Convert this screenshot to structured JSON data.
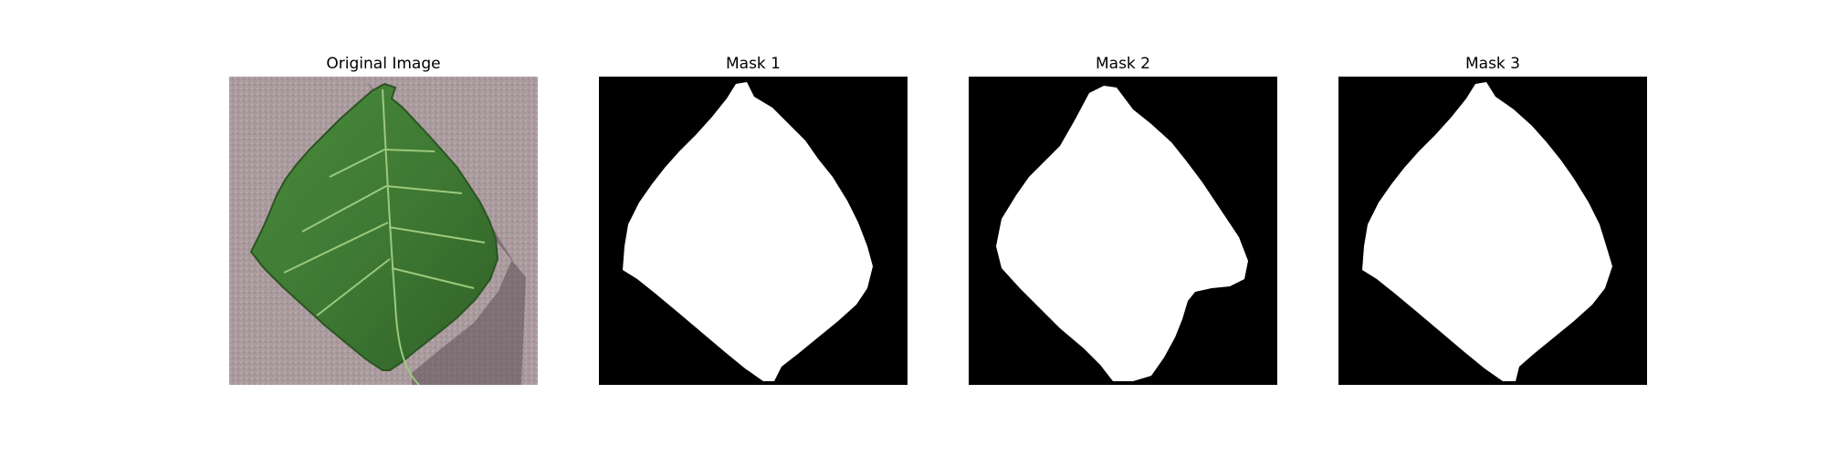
{
  "figure": {
    "panels": [
      {
        "title": "Original Image"
      },
      {
        "title": "Mask 1"
      },
      {
        "title": "Mask 2"
      },
      {
        "title": "Mask 3"
      }
    ]
  },
  "colors": {
    "background": "#ffffff",
    "mask_background": "#000000",
    "mask_foreground": "#ffffff",
    "leaf_green": "#3f7a34",
    "leaf_vein": "#9cc97c",
    "backdrop_stone": "#a8979b"
  }
}
